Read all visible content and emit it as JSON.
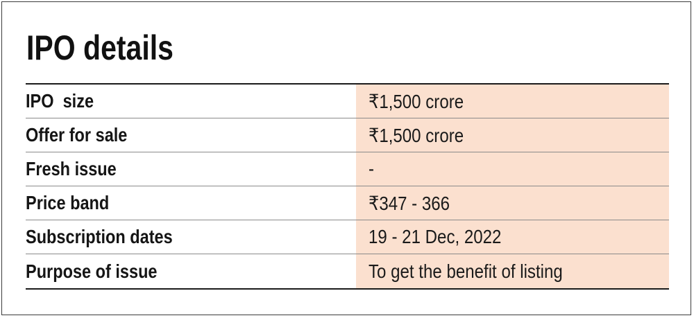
{
  "title": "IPO details",
  "rows": [
    {
      "label": "IPO  size",
      "value": "₹1,500 crore"
    },
    {
      "label": "Offer for sale",
      "value": "₹1,500 crore"
    },
    {
      "label": "Fresh issue",
      "value": "-"
    },
    {
      "label": "Price band",
      "value": "₹347 - 366"
    },
    {
      "label": "Subscription dates",
      "value": "19 - 21 Dec, 2022"
    },
    {
      "label": "Purpose of issue",
      "value": "To get the benefit of listing"
    }
  ],
  "colors": {
    "value_background": "#fbe0cf",
    "text": "#151515",
    "rule": "#1a1a1a"
  }
}
